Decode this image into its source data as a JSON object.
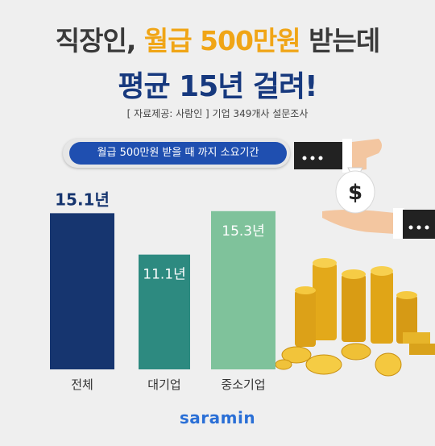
{
  "header": {
    "title_line1_a": "직장인, ",
    "title_line1_highlight": "월급 500만원",
    "title_line1_b": " 받는데",
    "title_line2": "평균 15년 걸려!",
    "source": "[ 자료제공: 사람인 ] 기업 349개사 설문조사"
  },
  "pill_label": "월급 500만원 받을 때 까지 소요기간",
  "chart_data": {
    "type": "bar",
    "title": "",
    "xlabel": "",
    "ylabel": "",
    "categories": [
      "전체",
      "대기업",
      "중소기업"
    ],
    "values": [
      15.1,
      11.1,
      15.3
    ],
    "value_labels": [
      "15.1년",
      "11.1년",
      "15.3년"
    ],
    "colors": [
      "#16356f",
      "#2d8a80",
      "#7fc29b"
    ],
    "label_colors": [
      "#16356f",
      "#ffffff",
      "#ffffff"
    ],
    "ylim": [
      0,
      17
    ],
    "grid": false
  },
  "colors": {
    "accent": "#f0a516",
    "title": "#17397e",
    "pill": "#1f4fb0",
    "logo": "#2a6fd6"
  },
  "icons": [
    "money-bag-icon",
    "coin-stack-icon",
    "handshake-icon"
  ],
  "logo": "saramin"
}
